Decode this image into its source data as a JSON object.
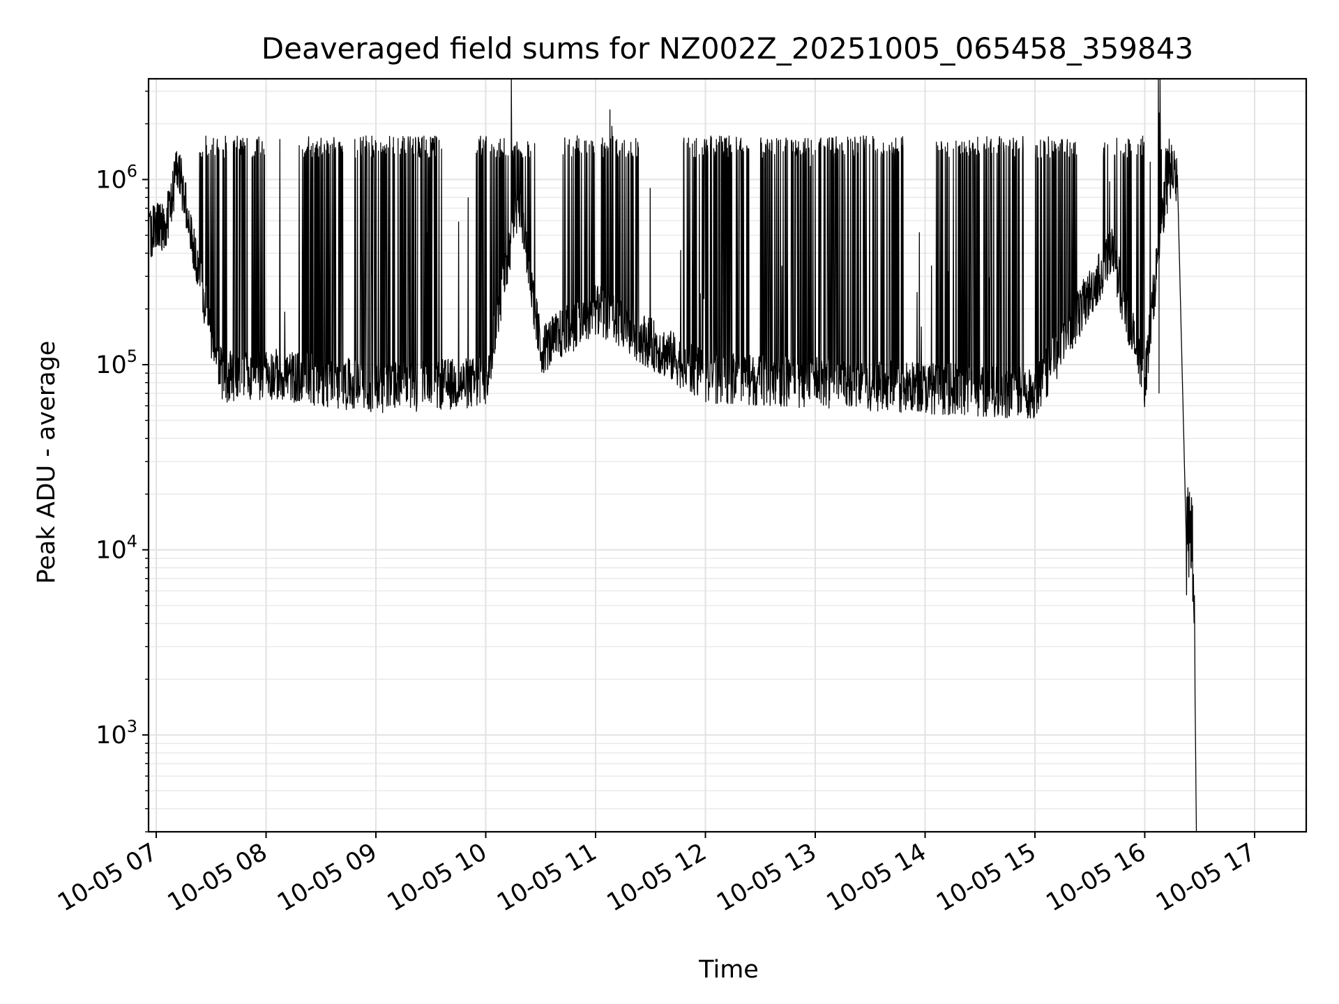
{
  "chart_data": {
    "type": "line",
    "title": "Deaveraged field sums for NZ002Z_20251005_065458_359843",
    "xlabel": "Time",
    "ylabel": "Peak ADU - average",
    "yscale": "log",
    "ylim": [
      300,
      3500000
    ],
    "xlim_hours": [
      6.93,
      17.47
    ],
    "grid": true,
    "x_ticks": [
      {
        "hour": 7,
        "label": "10-05 07"
      },
      {
        "hour": 8,
        "label": "10-05 08"
      },
      {
        "hour": 9,
        "label": "10-05 09"
      },
      {
        "hour": 10,
        "label": "10-05 10"
      },
      {
        "hour": 11,
        "label": "10-05 11"
      },
      {
        "hour": 12,
        "label": "10-05 12"
      },
      {
        "hour": 13,
        "label": "10-05 13"
      },
      {
        "hour": 14,
        "label": "10-05 14"
      },
      {
        "hour": 15,
        "label": "10-05 15"
      },
      {
        "hour": 16,
        "label": "10-05 16"
      },
      {
        "hour": 17,
        "label": "10-05 17"
      }
    ],
    "y_ticks": [
      {
        "value": 1000,
        "base": "10",
        "exp": "3"
      },
      {
        "value": 10000,
        "base": "10",
        "exp": "4"
      },
      {
        "value": 100000,
        "base": "10",
        "exp": "5"
      },
      {
        "value": 1000000,
        "base": "10",
        "exp": "6"
      }
    ],
    "series": [
      {
        "name": "Deaveraged field sum",
        "color": "#000000",
        "description_points": [
          {
            "hour": 6.93,
            "value": 500000
          },
          {
            "hour": 7.1,
            "value": 600000
          },
          {
            "hour": 7.2,
            "value": 1200000
          },
          {
            "hour": 7.3,
            "value": 600000
          },
          {
            "hour": 7.45,
            "value": 200000
          },
          {
            "hour": 7.6,
            "value": 85000
          },
          {
            "hour": 8.0,
            "value": 90000
          },
          {
            "hour": 9.0,
            "value": 75000
          },
          {
            "hour": 10.0,
            "value": 80000
          },
          {
            "hour": 10.3,
            "value": 800000
          },
          {
            "hour": 10.5,
            "value": 120000
          },
          {
            "hour": 11.0,
            "value": 200000
          },
          {
            "hour": 12.0,
            "value": 85000
          },
          {
            "hour": 13.0,
            "value": 80000
          },
          {
            "hour": 14.0,
            "value": 75000
          },
          {
            "hour": 15.0,
            "value": 70000
          },
          {
            "hour": 15.7,
            "value": 400000
          },
          {
            "hour": 16.0,
            "value": 80000
          },
          {
            "hour": 16.15,
            "value": 600000
          },
          {
            "hour": 16.25,
            "value": 1200000
          },
          {
            "hour": 16.3,
            "value": 900000
          },
          {
            "hour": 16.38,
            "value": 10000
          },
          {
            "hour": 16.42,
            "value": 15000
          },
          {
            "hour": 16.45,
            "value": 5000
          },
          {
            "hour": 16.47,
            "value": 300
          }
        ],
        "active_segments_hours": [
          [
            7.38,
            7.65
          ],
          [
            7.7,
            8.0
          ],
          [
            8.3,
            8.7
          ],
          [
            8.8,
            9.6
          ],
          [
            9.9,
            10.45
          ],
          [
            10.7,
            11.4
          ],
          [
            11.8,
            12.4
          ],
          [
            12.5,
            13.8
          ],
          [
            14.1,
            14.9
          ],
          [
            15.0,
            15.4
          ],
          [
            15.6,
            16.0
          ],
          [
            16.15,
            16.25
          ]
        ],
        "peak_level": 1500000,
        "baseline_level": 80000
      }
    ]
  }
}
